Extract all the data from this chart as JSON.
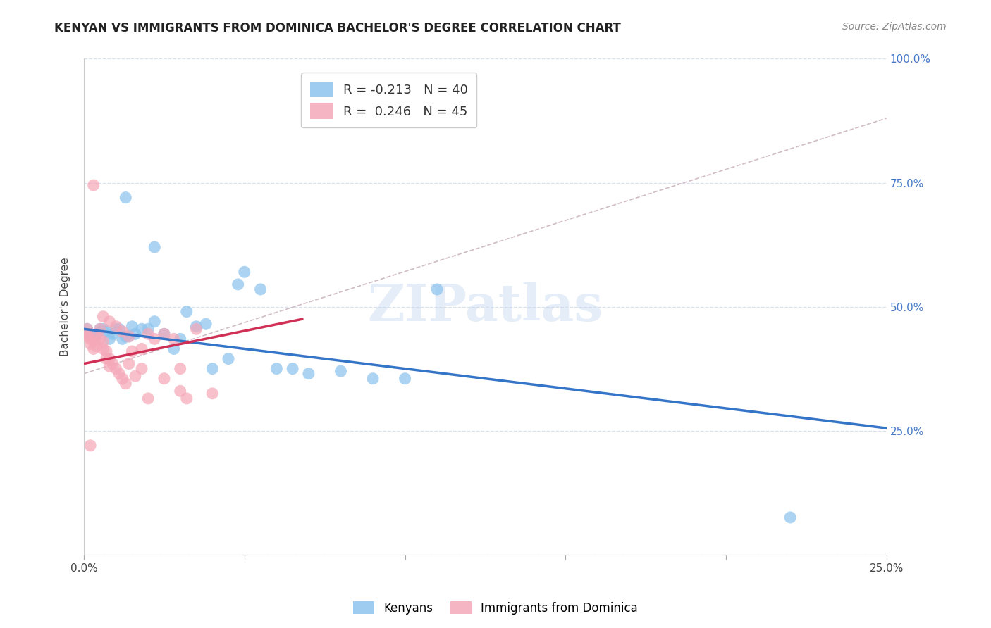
{
  "title": "KENYAN VS IMMIGRANTS FROM DOMINICA BACHELOR'S DEGREE CORRELATION CHART",
  "source": "Source: ZipAtlas.com",
  "ylabel": "Bachelor's Degree",
  "kenyan_color": "#8CC4EE",
  "dominica_color": "#F5A8B8",
  "kenyan_line_color": "#3575C8",
  "dominica_line_color": "#D03055",
  "diagonal_line_color": "#C8B0BC",
  "kenyan_scatter": [
    [
      0.001,
      0.455
    ],
    [
      0.002,
      0.445
    ],
    [
      0.003,
      0.44
    ],
    [
      0.004,
      0.445
    ],
    [
      0.005,
      0.455
    ],
    [
      0.006,
      0.455
    ],
    [
      0.007,
      0.45
    ],
    [
      0.008,
      0.435
    ],
    [
      0.009,
      0.445
    ],
    [
      0.01,
      0.455
    ],
    [
      0.011,
      0.455
    ],
    [
      0.012,
      0.435
    ],
    [
      0.013,
      0.44
    ],
    [
      0.014,
      0.44
    ],
    [
      0.015,
      0.46
    ],
    [
      0.016,
      0.445
    ],
    [
      0.018,
      0.455
    ],
    [
      0.02,
      0.455
    ],
    [
      0.022,
      0.47
    ],
    [
      0.025,
      0.445
    ],
    [
      0.028,
      0.415
    ],
    [
      0.03,
      0.435
    ],
    [
      0.032,
      0.49
    ],
    [
      0.035,
      0.46
    ],
    [
      0.038,
      0.465
    ],
    [
      0.04,
      0.375
    ],
    [
      0.045,
      0.395
    ],
    [
      0.048,
      0.545
    ],
    [
      0.05,
      0.57
    ],
    [
      0.055,
      0.535
    ],
    [
      0.06,
      0.375
    ],
    [
      0.065,
      0.375
    ],
    [
      0.07,
      0.365
    ],
    [
      0.08,
      0.37
    ],
    [
      0.09,
      0.355
    ],
    [
      0.1,
      0.355
    ],
    [
      0.013,
      0.72
    ],
    [
      0.022,
      0.62
    ],
    [
      0.11,
      0.535
    ],
    [
      0.22,
      0.075
    ]
  ],
  "dominica_scatter": [
    [
      0.001,
      0.455
    ],
    [
      0.001,
      0.445
    ],
    [
      0.002,
      0.435
    ],
    [
      0.002,
      0.425
    ],
    [
      0.003,
      0.43
    ],
    [
      0.003,
      0.415
    ],
    [
      0.004,
      0.44
    ],
    [
      0.004,
      0.42
    ],
    [
      0.005,
      0.455
    ],
    [
      0.005,
      0.435
    ],
    [
      0.006,
      0.43
    ],
    [
      0.006,
      0.415
    ],
    [
      0.007,
      0.41
    ],
    [
      0.007,
      0.395
    ],
    [
      0.008,
      0.395
    ],
    [
      0.008,
      0.38
    ],
    [
      0.009,
      0.385
    ],
    [
      0.01,
      0.375
    ],
    [
      0.011,
      0.365
    ],
    [
      0.012,
      0.355
    ],
    [
      0.013,
      0.345
    ],
    [
      0.014,
      0.385
    ],
    [
      0.015,
      0.41
    ],
    [
      0.016,
      0.36
    ],
    [
      0.018,
      0.375
    ],
    [
      0.02,
      0.445
    ],
    [
      0.022,
      0.435
    ],
    [
      0.025,
      0.445
    ],
    [
      0.028,
      0.435
    ],
    [
      0.03,
      0.33
    ],
    [
      0.032,
      0.315
    ],
    [
      0.035,
      0.455
    ],
    [
      0.003,
      0.745
    ],
    [
      0.001,
      0.44
    ],
    [
      0.002,
      0.22
    ],
    [
      0.04,
      0.325
    ],
    [
      0.025,
      0.355
    ],
    [
      0.03,
      0.375
    ],
    [
      0.018,
      0.415
    ],
    [
      0.006,
      0.48
    ],
    [
      0.008,
      0.47
    ],
    [
      0.01,
      0.46
    ],
    [
      0.012,
      0.45
    ],
    [
      0.014,
      0.44
    ],
    [
      0.02,
      0.315
    ]
  ],
  "background_color": "#FFFFFF",
  "grid_color": "#D8E0EC",
  "xlim": [
    0.0,
    0.25
  ],
  "ylim": [
    0.0,
    1.0
  ],
  "yticks": [
    0.0,
    0.25,
    0.5,
    0.75,
    1.0
  ],
  "ytick_labels": [
    "",
    "25.0%",
    "50.0%",
    "75.0%",
    "100.0%"
  ],
  "xticks": [
    0.0,
    0.05,
    0.1,
    0.15,
    0.2,
    0.25
  ],
  "xtick_labels": [
    "0.0%",
    "",
    "",
    "",
    "",
    "25.0%"
  ],
  "kenyan_line_x0": 0.0,
  "kenyan_line_y0": 0.455,
  "kenyan_line_x1": 0.25,
  "kenyan_line_y1": 0.255,
  "dominica_line_x0": 0.0,
  "dominica_line_y0": 0.385,
  "dominica_line_x1": 0.068,
  "dominica_line_y1": 0.475,
  "diag_line_x0": 0.0,
  "diag_line_y0": 0.365,
  "diag_line_x1": 0.25,
  "diag_line_y1": 0.88,
  "title_fontsize": 12,
  "axis_label_fontsize": 11,
  "tick_fontsize": 11,
  "source_fontsize": 10,
  "legend_r1": "R = -0.213",
  "legend_n1": "N = 40",
  "legend_r2": "R =  0.246",
  "legend_n2": "N = 45",
  "tick_color": "#4878C8",
  "bottom_legend_kenyans": "Kenyans",
  "bottom_legend_dominica": "Immigrants from Dominica"
}
